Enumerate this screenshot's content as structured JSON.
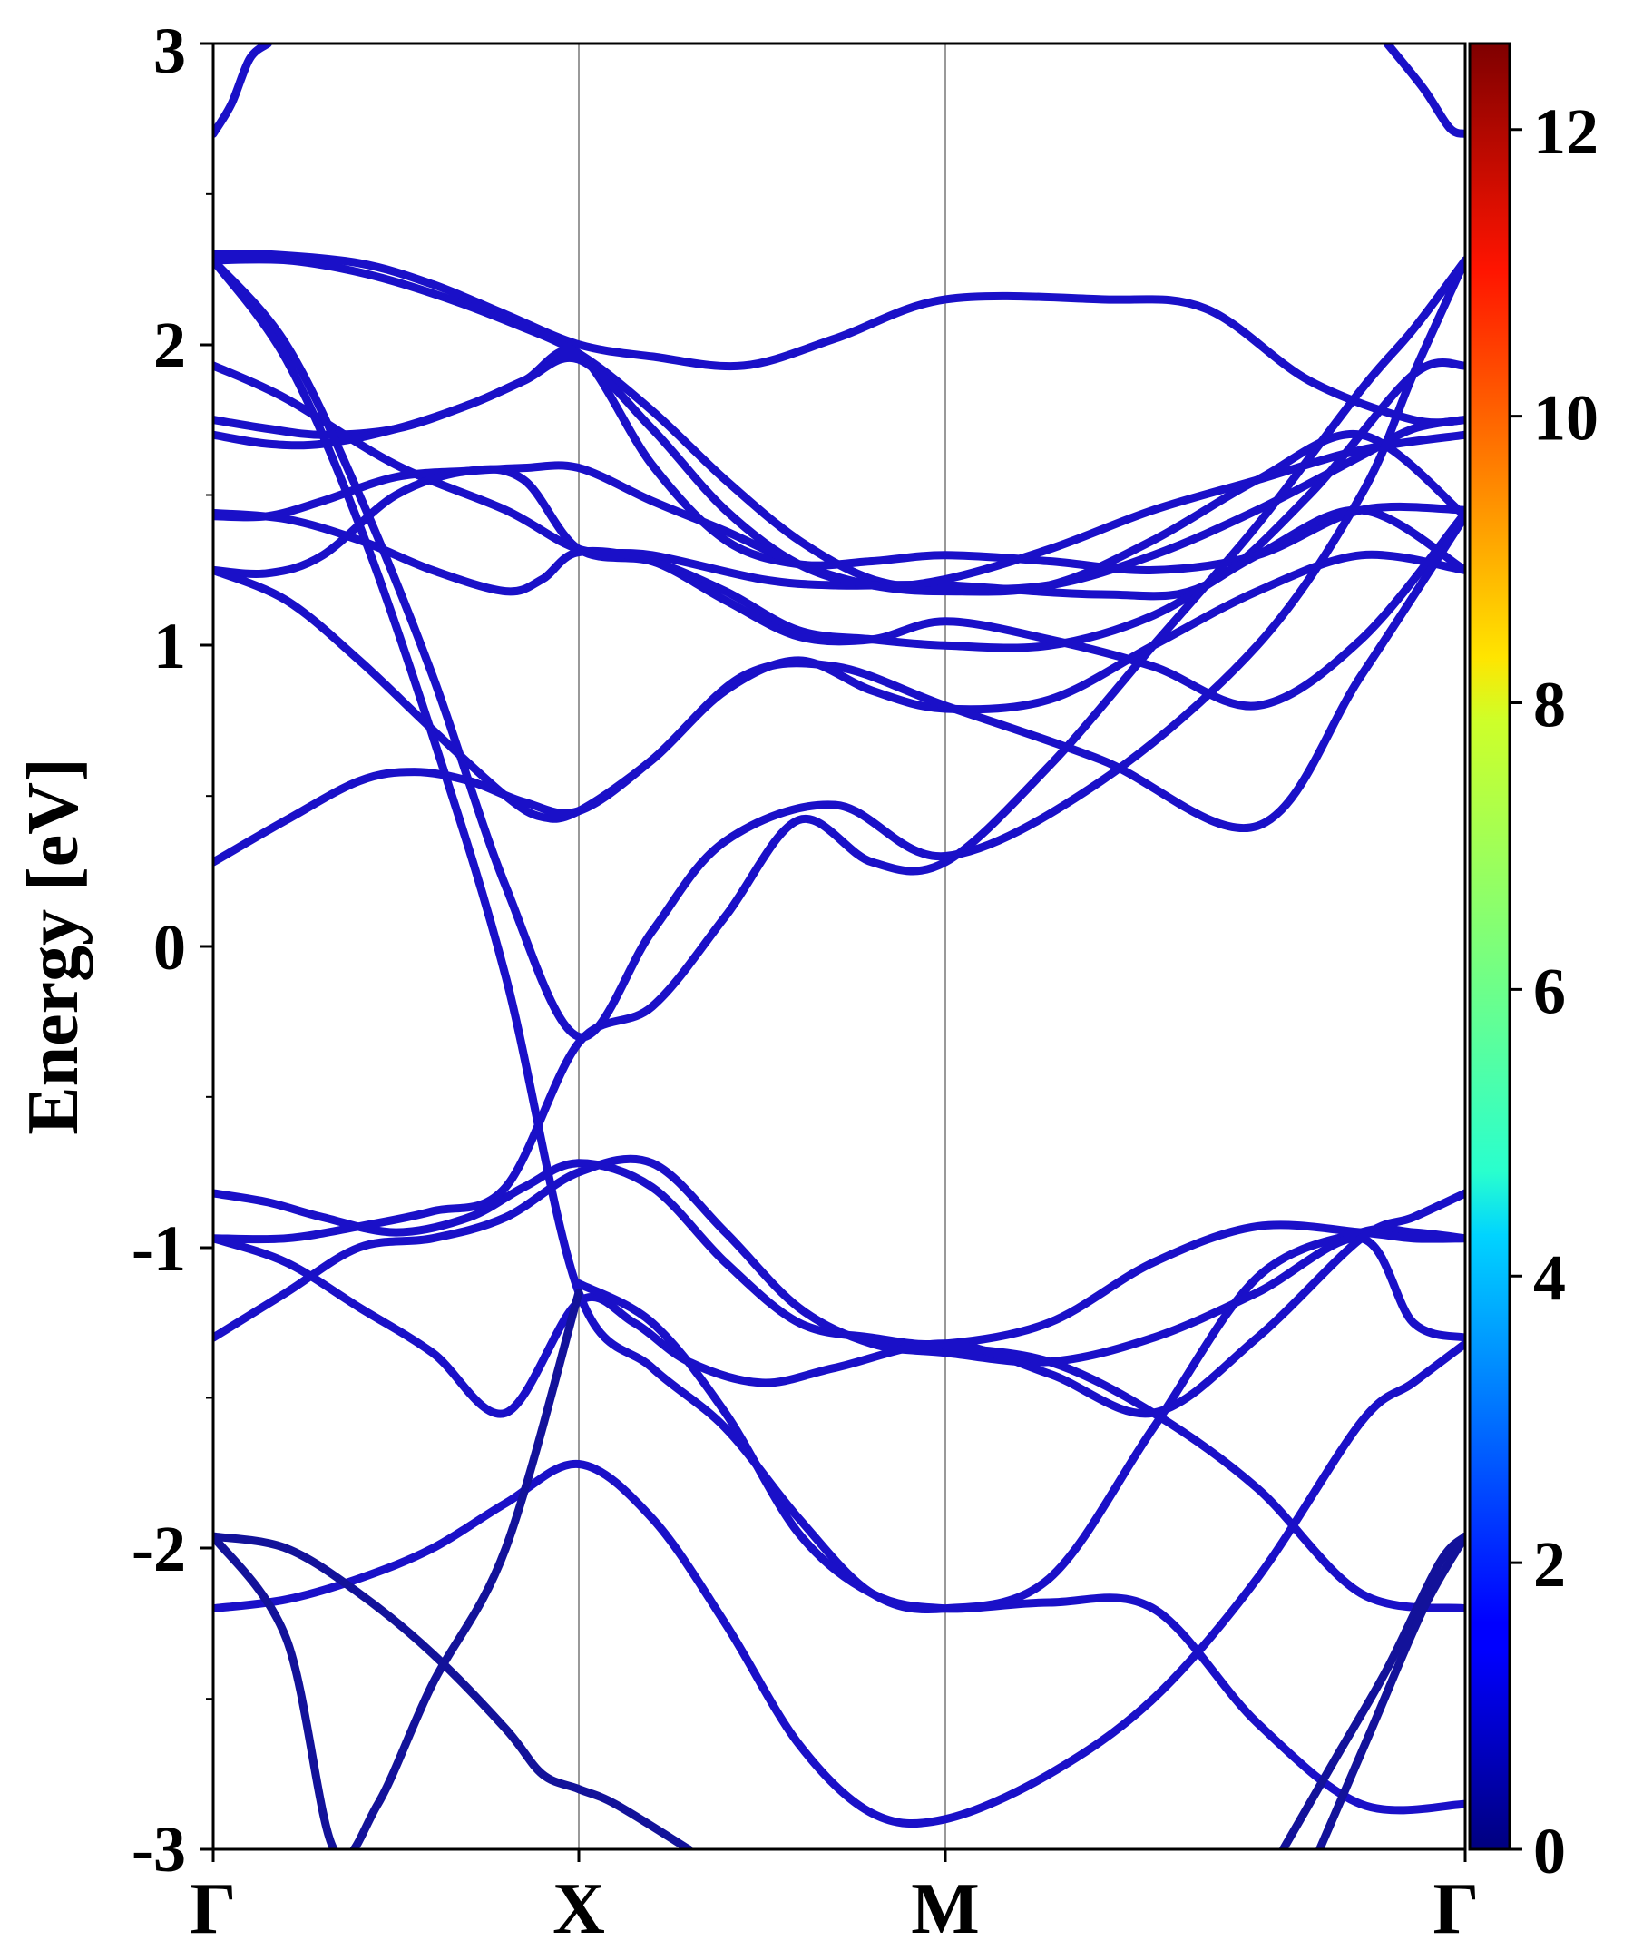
{
  "chart_data": {
    "type": "line",
    "title": "",
    "xlabel": "",
    "ylabel": "Energy [eV]",
    "ylim": [
      -3,
      3
    ],
    "yticks": [
      "3",
      "2",
      "1",
      "0",
      "-1",
      "-2",
      "-3"
    ],
    "yticks_values": [
      3,
      2,
      1,
      0,
      -1,
      -2,
      -3
    ],
    "x_labels": [
      "Γ",
      "X",
      "M",
      "Γ"
    ],
    "x_label_positions": [
      0,
      1,
      2,
      3
    ],
    "grid": false,
    "vertical_lines_at": [
      1,
      2
    ],
    "colorbar": {
      "ticks": [
        "0",
        "2",
        "4",
        "6",
        "8",
        "10",
        "12"
      ],
      "tick_values": [
        0,
        2,
        4,
        6,
        8,
        10,
        12
      ],
      "range": [
        0,
        12.6
      ],
      "colormap": "jet",
      "position": "right"
    },
    "band_color": "#1a10c8",
    "band_color_dark": "#13129a",
    "series": [
      {
        "x": [
          0,
          0.15,
          0.4,
          0.6,
          0.8,
          1,
          1.2,
          1.45,
          1.7,
          2,
          2.3,
          2.5,
          2.7,
          2.9,
          3
        ],
        "y": [
          2.3,
          2.3,
          2.27,
          2.2,
          2.1,
          2.0,
          1.96,
          1.93,
          2.02,
          2.15,
          2.15,
          2.12,
          1.88,
          1.75,
          1.75
        ]
      },
      {
        "x": [
          0,
          0.2,
          0.4,
          0.6,
          0.8,
          1,
          1.2,
          1.4,
          1.6,
          1.8,
          2,
          2.2,
          2.4,
          2.6,
          2.8,
          2.9,
          3
        ],
        "y": [
          2.28,
          2.28,
          2.24,
          2.17,
          2.08,
          1.97,
          1.78,
          1.55,
          1.35,
          1.22,
          1.19,
          1.2,
          1.3,
          1.45,
          1.63,
          1.72,
          1.75
        ]
      },
      {
        "x": [
          0,
          0.2,
          0.5,
          0.8,
          1,
          1.2,
          1.5,
          1.7,
          2,
          2.3,
          2.5,
          2.7,
          2.9,
          3
        ],
        "y": [
          1.93,
          1.82,
          1.6,
          1.45,
          1.32,
          1.3,
          1.22,
          1.2,
          1.2,
          1.17,
          1.2,
          1.5,
          1.9,
          1.93
        ]
      },
      {
        "x": [
          0,
          0.15,
          0.3,
          0.5,
          0.7,
          0.85,
          1,
          1.2,
          1.4,
          1.6,
          1.8,
          2,
          2.2,
          2.4,
          2.6,
          2.8,
          3
        ],
        "y": [
          1.75,
          1.72,
          1.7,
          1.72,
          1.8,
          1.88,
          1.97,
          1.6,
          1.35,
          1.27,
          1.28,
          1.3,
          1.28,
          1.25,
          1.3,
          1.45,
          1.45
        ]
      },
      {
        "x": [
          0,
          0.15,
          0.3,
          0.5,
          0.7,
          0.85,
          1,
          1.2,
          1.4,
          1.6,
          1.8,
          2,
          2.2,
          2.4,
          2.6,
          2.8,
          3
        ],
        "y": [
          1.7,
          1.67,
          1.67,
          1.72,
          1.8,
          1.88,
          1.95,
          1.72,
          1.45,
          1.27,
          1.2,
          1.22,
          1.32,
          1.45,
          1.55,
          1.65,
          1.7
        ]
      },
      {
        "x": [
          0,
          0.15,
          0.3,
          0.5,
          0.7,
          0.85,
          1,
          1.2,
          1.4,
          1.6,
          1.8,
          2,
          2.2,
          2.4,
          2.6,
          2.8,
          3
        ],
        "y": [
          1.43,
          1.43,
          1.48,
          1.56,
          1.58,
          1.59,
          1.59,
          1.48,
          1.38,
          1.27,
          1.2,
          1.18,
          1.2,
          1.35,
          1.55,
          1.7,
          1.43
        ]
      },
      {
        "x": [
          0,
          0.15,
          0.3,
          0.5,
          0.7,
          0.85,
          1,
          1.2,
          1.4,
          1.6,
          1.8,
          2,
          2.2,
          2.4,
          2.6,
          2.8,
          3
        ],
        "y": [
          1.25,
          1.24,
          1.3,
          1.5,
          1.58,
          1.55,
          1.32,
          1.28,
          1.18,
          1.05,
          1.02,
          1.0,
          1.0,
          1.1,
          1.3,
          1.45,
          1.25
        ]
      },
      {
        "x": [
          0,
          0.2,
          0.4,
          0.6,
          0.8,
          0.9,
          1,
          1.2,
          1.4,
          1.6,
          1.8,
          2,
          2.2,
          2.4,
          2.6,
          2.8,
          3
        ],
        "y": [
          1.44,
          1.42,
          1.35,
          1.25,
          1.18,
          1.22,
          1.31,
          1.28,
          1.15,
          1.03,
          1.02,
          1.08,
          1.02,
          0.93,
          0.8,
          1.02,
          1.44
        ]
      },
      {
        "x": [
          0,
          0.2,
          0.4,
          0.6,
          0.8,
          0.9,
          1,
          1.2,
          1.4,
          1.6,
          1.8,
          2,
          2.2,
          2.4,
          2.6,
          2.8,
          3
        ],
        "y": [
          1.25,
          1.15,
          0.95,
          0.72,
          0.5,
          0.43,
          0.45,
          0.62,
          0.85,
          0.95,
          0.85,
          0.79,
          0.82,
          1.0,
          1.18,
          1.3,
          1.25
        ]
      },
      {
        "x": [
          0,
          0.2,
          0.4,
          0.55,
          0.7,
          0.85,
          1,
          1.2,
          1.45,
          1.7,
          2,
          2.3,
          2.6,
          2.8,
          3
        ],
        "y": [
          0.28,
          0.42,
          0.55,
          0.58,
          0.55,
          0.48,
          0.45,
          0.62,
          0.9,
          0.93,
          0.8,
          0.62,
          0.4,
          0.9,
          1.43
        ]
      },
      {
        "x": [
          0,
          0.2,
          0.4,
          0.6,
          0.8,
          1,
          1.2,
          1.4,
          1.7,
          2,
          2.3,
          2.6,
          2.8,
          2.9,
          3
        ],
        "y": [
          2.28,
          2.0,
          1.5,
          0.9,
          0.2,
          -0.3,
          0.05,
          0.35,
          0.47,
          0.3,
          0.55,
          1.0,
          1.5,
          1.9,
          2.28
        ]
      },
      {
        "x": [
          0,
          0.2,
          0.4,
          0.6,
          0.8,
          1,
          1.2,
          1.4,
          1.6,
          1.8,
          2,
          2.2,
          2.4,
          2.6,
          2.8,
          2.9,
          3
        ],
        "y": [
          2.28,
          1.95,
          1.4,
          0.7,
          -0.1,
          -1.15,
          -1.4,
          -1.6,
          -1.9,
          -2.15,
          -2.2,
          -2.1,
          -1.6,
          -1.1,
          -0.95,
          -0.95,
          -0.97
        ]
      },
      {
        "x": [
          0,
          0.15,
          0.3,
          0.5,
          0.7,
          0.85,
          1,
          1.2,
          1.4,
          1.6,
          1.8,
          2,
          2.2,
          2.4,
          2.6,
          2.8,
          2.9,
          3
        ],
        "y": [
          -0.82,
          -0.85,
          -0.9,
          -0.95,
          -0.9,
          -0.8,
          -0.72,
          -0.8,
          -1.05,
          -1.25,
          -1.3,
          -1.32,
          -1.25,
          -1.05,
          -0.93,
          -0.95,
          -0.97,
          -0.97
        ]
      },
      {
        "x": [
          0,
          0.2,
          0.4,
          0.6,
          0.8,
          1,
          1.2,
          1.4,
          1.6,
          1.8,
          2,
          2.2,
          2.4,
          2.6,
          2.8,
          2.9,
          3
        ],
        "y": [
          -0.97,
          -0.97,
          -0.93,
          -0.88,
          -0.8,
          -0.32,
          -0.2,
          0.1,
          0.42,
          0.28,
          0.28,
          0.6,
          1.0,
          1.4,
          1.85,
          2.05,
          2.28
        ]
      },
      {
        "x": [
          0,
          0.2,
          0.4,
          0.6,
          0.8,
          1,
          1.2,
          1.4,
          1.6,
          1.8,
          2,
          2.2,
          2.4,
          2.6,
          2.8,
          2.9,
          3
        ],
        "y": [
          -1.3,
          -1.15,
          -1.0,
          -0.97,
          -0.9,
          -0.75,
          -0.72,
          -0.95,
          -1.2,
          -1.32,
          -1.35,
          -1.38,
          -1.3,
          -1.15,
          -0.97,
          -1.25,
          -1.3
        ]
      },
      {
        "x": [
          0,
          0.2,
          0.4,
          0.6,
          0.8,
          1,
          1.15,
          1.3,
          1.5,
          1.7,
          2,
          2.2,
          2.4,
          2.6,
          2.8,
          2.9,
          3
        ],
        "y": [
          -0.97,
          -1.05,
          -1.2,
          -1.35,
          -1.55,
          -1.18,
          -1.25,
          -1.38,
          -1.45,
          -1.4,
          -1.32,
          -1.42,
          -1.55,
          -1.3,
          -0.97,
          -0.9,
          -0.82
        ]
      },
      {
        "x": [
          0,
          0.2,
          0.4,
          0.6,
          0.8,
          1,
          1.2,
          1.4,
          1.6,
          1.8,
          2,
          2.2,
          2.4,
          2.6,
          2.8,
          2.9,
          3
        ],
        "y": [
          -2.2,
          -2.17,
          -2.1,
          -2.0,
          -1.85,
          -1.72,
          -1.9,
          -2.25,
          -2.65,
          -2.88,
          -2.9,
          -2.75,
          -2.5,
          -2.1,
          -1.58,
          -1.45,
          -1.32
        ]
      },
      {
        "x": [
          1,
          1.2,
          1.4,
          1.6,
          1.8,
          2,
          2.2,
          2.4,
          2.6,
          2.8,
          3
        ],
        "y": [
          -1.12,
          -1.25,
          -1.55,
          -1.95,
          -2.15,
          -2.2,
          -2.18,
          -2.2,
          -2.58,
          -2.85,
          -2.85
        ]
      },
      {
        "x": [
          2,
          2.2,
          2.4,
          2.6,
          2.8,
          3
        ],
        "y": [
          -1.33,
          -1.38,
          -1.55,
          -1.8,
          -2.15,
          -2.2
        ]
      },
      {
        "x": [
          0,
          0.2,
          0.33,
          0.45,
          0.6,
          0.8,
          1
        ],
        "y": [
          -1.96,
          -2.3,
          -3.0,
          -2.85,
          -2.45,
          -2.0,
          -1.15
        ]
      },
      {
        "x": [
          0,
          0.2,
          0.4,
          0.6,
          0.8,
          0.9,
          1,
          1.1,
          1.3
        ],
        "y": [
          -1.96,
          -2.0,
          -2.15,
          -2.35,
          -2.6,
          -2.75,
          -2.8,
          -2.85,
          -3.0
        ]
      },
      {
        "x": [
          2.65,
          2.75,
          2.85,
          2.95,
          3
        ],
        "y": [
          -3.0,
          -2.7,
          -2.4,
          -2.05,
          -1.96
        ]
      },
      {
        "x": [
          2.72,
          2.82,
          2.92,
          3
        ],
        "y": [
          -3.0,
          -2.6,
          -2.2,
          -1.96
        ]
      },
      {
        "x": [
          0,
          0.05,
          0.1,
          0.15
        ],
        "y": [
          2.7,
          2.8,
          2.95,
          3.0
        ]
      },
      {
        "x": [
          2.85,
          2.92,
          2.97,
          3
        ],
        "y": [
          3.0,
          2.85,
          2.72,
          2.7
        ]
      }
    ]
  }
}
